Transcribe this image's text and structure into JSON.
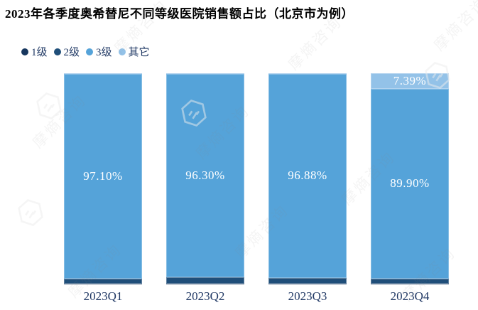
{
  "watermark": {
    "text": "摩熵咨询"
  },
  "chart_data": {
    "type": "bar",
    "subtype": "stacked-100-percent",
    "title": "2023年各季度奥希替尼不同等级医院销售额占比（北京市为例）",
    "categories": [
      "2023Q1",
      "2023Q2",
      "2023Q3",
      "2023Q4"
    ],
    "series": [
      {
        "name": "1级",
        "color": "#17375e",
        "values": [
          0.25,
          0.3,
          0.25,
          0.25
        ],
        "labels": [
          "",
          "",
          "",
          ""
        ]
      },
      {
        "name": "2级",
        "color": "#1f4e79",
        "values": [
          2.45,
          3.2,
          2.7,
          2.46
        ],
        "labels": [
          "",
          "",
          "",
          ""
        ]
      },
      {
        "name": "3级",
        "color": "#55a3d9",
        "values": [
          97.1,
          96.3,
          96.88,
          89.9
        ],
        "labels": [
          "97.10%",
          "96.30%",
          "96.88%",
          "89.90%"
        ]
      },
      {
        "name": "其它",
        "color": "#93c2e8",
        "values": [
          0.2,
          0.2,
          0.17,
          7.39
        ],
        "labels": [
          "",
          "",
          "",
          "7.39%"
        ]
      }
    ],
    "xlabel": "",
    "ylabel": "",
    "ylim": [
      0,
      100
    ],
    "grid": false,
    "legend_position": "top-left",
    "data_label_color": "#ffffff"
  }
}
